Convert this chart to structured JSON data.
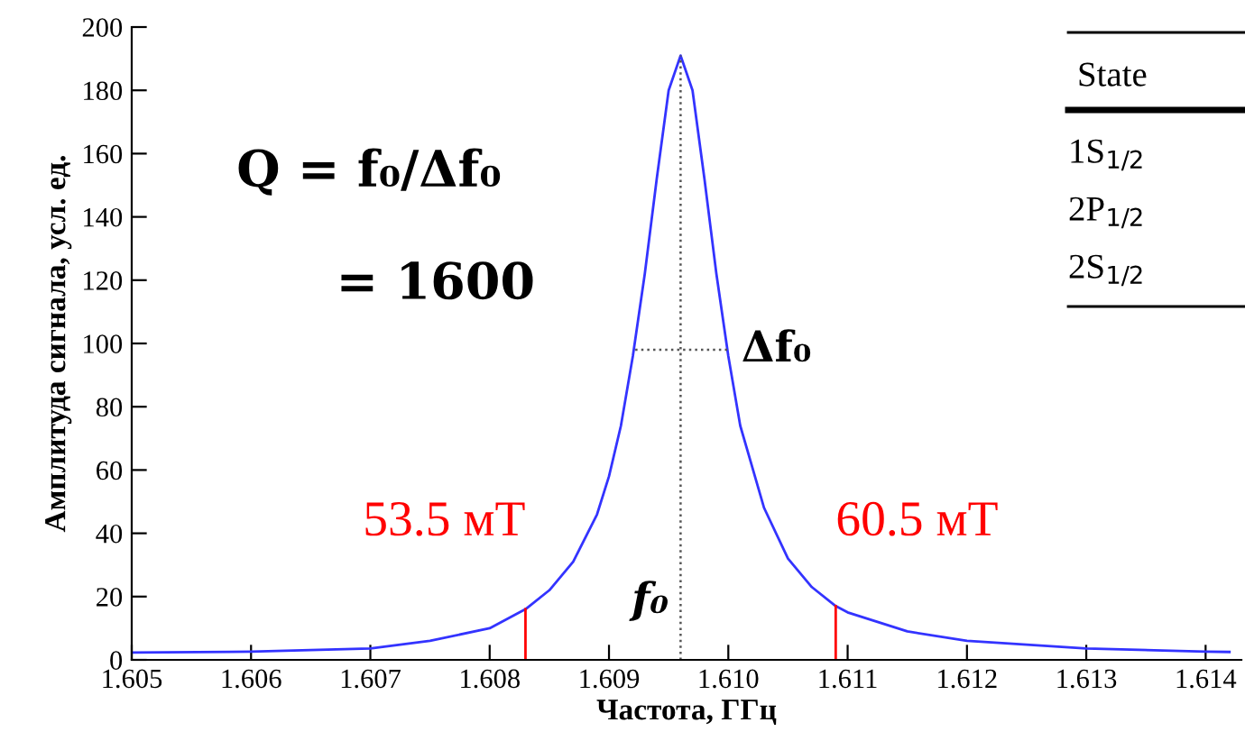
{
  "chart_data": {
    "type": "line",
    "xlabel": "Частота, ГГц",
    "ylabel": "Амплитуда сигнала, усл. ед.",
    "xlim": [
      1.605,
      1.6143
    ],
    "ylim": [
      0,
      200
    ],
    "xticks": [
      {
        "value": 1.605,
        "label": "1.605"
      },
      {
        "value": 1.606,
        "label": "1.606"
      },
      {
        "value": 1.607,
        "label": "1.607"
      },
      {
        "value": 1.608,
        "label": "1.608"
      },
      {
        "value": 1.609,
        "label": "1.609"
      },
      {
        "value": 1.61,
        "label": "1.610"
      },
      {
        "value": 1.611,
        "label": "1.611"
      },
      {
        "value": 1.612,
        "label": "1.612"
      },
      {
        "value": 1.613,
        "label": "1.613"
      },
      {
        "value": 1.614,
        "label": "1.614"
      }
    ],
    "yticks": [
      0,
      20,
      40,
      60,
      80,
      100,
      120,
      140,
      160,
      180,
      200
    ],
    "grid": false,
    "legend": false,
    "marker": "none",
    "series": [
      {
        "color": "#3333ff",
        "line_style": "solid",
        "x": [
          1.605,
          1.606,
          1.607,
          1.6075,
          1.608,
          1.6083,
          1.6085,
          1.6087,
          1.6089,
          1.609,
          1.6091,
          1.6092,
          1.6093,
          1.6094,
          1.6095,
          1.6096,
          1.6097,
          1.6098,
          1.6099,
          1.61,
          1.6101,
          1.6103,
          1.6105,
          1.6107,
          1.6109,
          1.611,
          1.6115,
          1.612,
          1.613,
          1.614,
          1.6142
        ],
        "values": [
          2.3,
          2.6,
          3.6,
          6,
          10,
          16,
          22,
          31,
          46,
          58,
          74,
          96,
          122,
          152,
          180,
          191,
          180,
          152,
          122,
          96,
          74,
          48,
          32,
          23,
          17,
          15,
          9,
          6,
          3.6,
          2.6,
          2.5
        ]
      },
      {
        "color": "#ff0000",
        "line_style": "solid",
        "x": [
          1.6083,
          1.6083
        ],
        "values": [
          0,
          16
        ]
      },
      {
        "color": "#ff0000",
        "line_style": "solid",
        "x": [
          1.6109,
          1.6109
        ],
        "values": [
          0,
          17
        ]
      },
      {
        "color": "#555555",
        "line_style": "dotted",
        "x": [
          1.6096,
          1.6096
        ],
        "values": [
          0,
          191
        ]
      },
      {
        "color": "#555555",
        "line_style": "dotted",
        "x": [
          1.60922,
          1.60999
        ],
        "values": [
          98,
          98
        ]
      }
    ],
    "annotations": [
      {
        "text": "53.5 мТ",
        "x": 1.6083,
        "y": 16
      },
      {
        "text": "60.5 мТ",
        "x": 1.6109,
        "y": 17
      },
      {
        "text": "f₀",
        "x": 1.6096,
        "y": 0
      },
      {
        "text": "Δf₀",
        "x": 1.60999,
        "y": 98
      },
      "Q = f₀/Δf₀",
      "= 1600",
      "State",
      "1S$_{1/2}$",
      "2P$_{1/2}$",
      "2S$_{1/2}$"
    ]
  }
}
